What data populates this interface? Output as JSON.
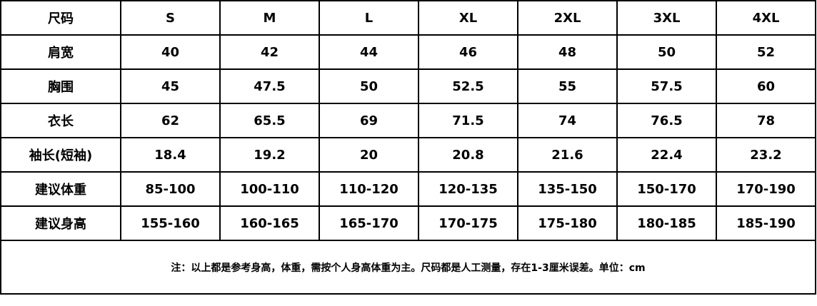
{
  "header": {
    "label": "尺码",
    "sizes": [
      "S",
      "M",
      "L",
      "XL",
      "2XL",
      "3XL",
      "4XL"
    ]
  },
  "rows": [
    {
      "label": "肩宽",
      "values": [
        "40",
        "42",
        "44",
        "46",
        "48",
        "50",
        "52"
      ]
    },
    {
      "label": "胸围",
      "values": [
        "45",
        "47.5",
        "50",
        "52.5",
        "55",
        "57.5",
        "60"
      ]
    },
    {
      "label": "衣长",
      "values": [
        "62",
        "65.5",
        "69",
        "71.5",
        "74",
        "76.5",
        "78"
      ]
    },
    {
      "label": "袖长(短袖)",
      "values": [
        "18.4",
        "19.2",
        "20",
        "20.8",
        "21.6",
        "22.4",
        "23.2"
      ]
    },
    {
      "label": "建议体重",
      "values": [
        "85-100",
        "100-110",
        "110-120",
        "120-135",
        "135-150",
        "150-170",
        "170-190"
      ]
    },
    {
      "label": "建议身高",
      "values": [
        "155-160",
        "160-165",
        "165-170",
        "170-175",
        "175-180",
        "180-185",
        "185-190"
      ]
    }
  ],
  "note": "注：以上都是参考身高，体重，需按个人身高体重为主。尺码都是人工测量，存在1-3厘米误差。单位：cm"
}
